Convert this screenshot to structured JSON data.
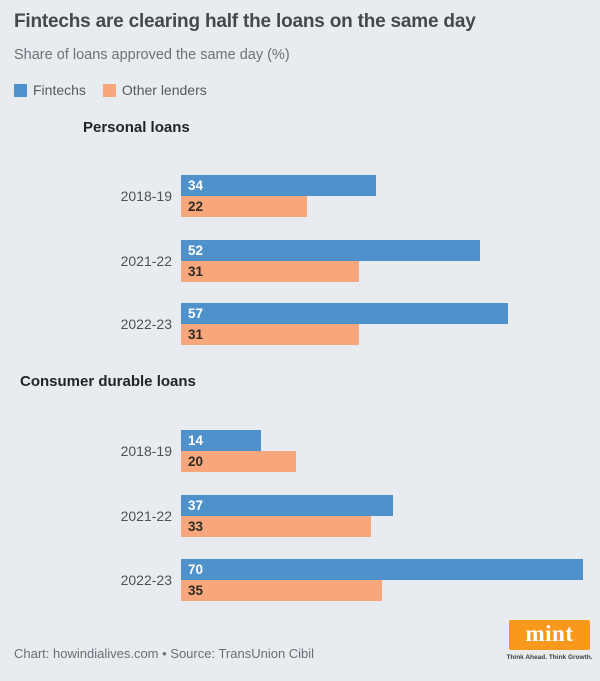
{
  "title": "Fintechs are clearing half the loans on the same day",
  "subtitle": "Share of loans approved the same day (%)",
  "legend": [
    {
      "label": "Fintechs",
      "color": "#4E91CB"
    },
    {
      "label": "Other lenders",
      "color": "#F8A77D"
    }
  ],
  "colors": {
    "fintechs": "#4E91CB",
    "other_lenders": "#F8A77D",
    "background": "#E8EBF0",
    "mint_orange": "#F8991D"
  },
  "chart_data": [
    {
      "type": "bar",
      "orientation": "horizontal",
      "title": "Personal loans",
      "categories": [
        "2018-19",
        "2021-22",
        "2022-23"
      ],
      "series": [
        {
          "name": "Fintechs",
          "values": [
            34,
            52,
            57
          ]
        },
        {
          "name": "Other lenders",
          "values": [
            22,
            31,
            31
          ]
        }
      ],
      "xlim": [
        0,
        70
      ],
      "value_labels": "inside-start",
      "grid": false,
      "legend_position": "top-left"
    },
    {
      "type": "bar",
      "orientation": "horizontal",
      "title": "Consumer durable loans",
      "categories": [
        "2018-19",
        "2021-22",
        "2022-23"
      ],
      "series": [
        {
          "name": "Fintechs",
          "values": [
            14,
            37,
            70
          ]
        },
        {
          "name": "Other lenders",
          "values": [
            20,
            33,
            35
          ]
        }
      ],
      "xlim": [
        0,
        70
      ],
      "value_labels": "inside-start",
      "grid": false,
      "legend_position": "top-left"
    }
  ],
  "footer": {
    "credit": "Chart: howindialives.com • Source: TransUnion Cibil",
    "logo_text": "mint",
    "logo_tagline": "Think Ahead. Think Growth."
  }
}
